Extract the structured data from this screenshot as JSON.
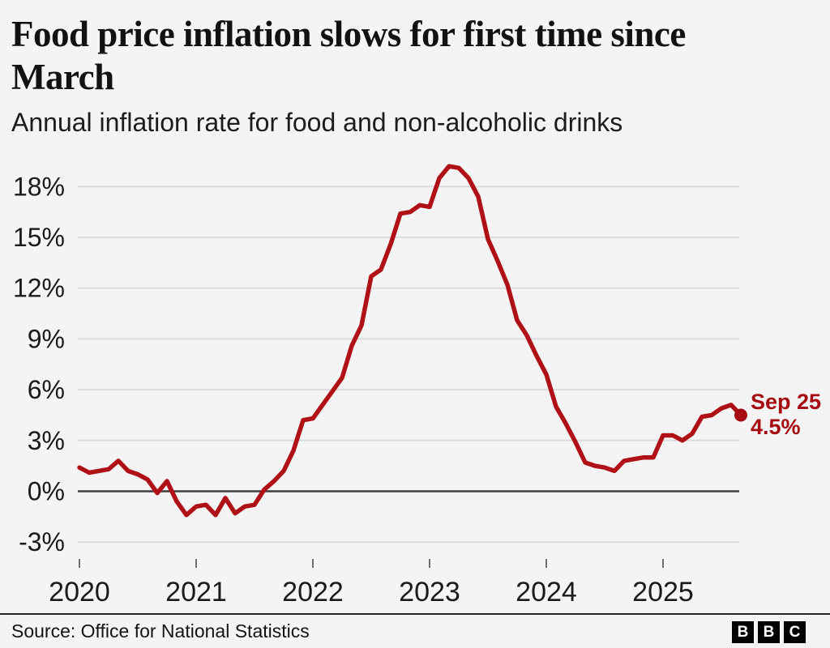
{
  "header": {
    "title": "Food price inflation slows for first time since March",
    "title_lines": [
      "Food price inflation slows for first time since",
      "March"
    ],
    "subtitle": "Annual inflation rate for food and non-alcoholic drinks"
  },
  "footer": {
    "source": "Source: Office for National Statistics",
    "logo_letters": [
      "B",
      "B",
      "C"
    ]
  },
  "colors": {
    "background": "#f4f4f4",
    "accent_red": "#b01116",
    "annotation_red": "#a60d12",
    "grid": "#dcdcdc",
    "zero_line": "#3d3d3d",
    "tick": "#6f6f6f",
    "text": "#1a1a1a"
  },
  "chart_data": {
    "type": "line",
    "title": "Food price inflation slows for first time since March",
    "subtitle": "Annual inflation rate for food and non-alcoholic drinks",
    "unit": "%",
    "x_start": "2020-01",
    "x_frequency": "monthly",
    "series": [
      {
        "name": "Annual inflation rate for food and non-alcoholic drinks",
        "values": [
          1.4,
          1.1,
          1.2,
          1.3,
          1.8,
          1.2,
          1.0,
          0.7,
          -0.1,
          0.6,
          -0.6,
          -1.4,
          -0.9,
          -0.8,
          -1.4,
          -0.4,
          -1.3,
          -0.9,
          -0.8,
          0.1,
          0.6,
          1.2,
          2.4,
          4.2,
          4.3,
          5.1,
          5.9,
          6.7,
          8.6,
          9.8,
          12.7,
          13.1,
          14.6,
          16.4,
          16.5,
          16.9,
          16.8,
          18.5,
          19.2,
          19.1,
          18.5,
          17.4,
          14.9,
          13.6,
          12.2,
          10.1,
          9.2,
          8.0,
          6.9,
          5.0,
          4.0,
          2.9,
          1.7,
          1.5,
          1.4,
          1.2,
          1.8,
          1.9,
          2.0,
          2.0,
          3.3,
          3.3,
          3.0,
          3.4,
          4.4,
          4.5,
          4.9,
          5.1,
          4.5
        ]
      }
    ],
    "x_tick_labels": [
      "2020",
      "2021",
      "2022",
      "2023",
      "2024",
      "2025"
    ],
    "x_tick_month_index": [
      0,
      12,
      24,
      36,
      48,
      60
    ],
    "y_ticks": [
      18,
      15,
      12,
      9,
      6,
      3,
      0,
      -3
    ],
    "y_tick_labels": [
      "18%",
      "15%",
      "12%",
      "9%",
      "6%",
      "3%",
      "0%",
      "-3%"
    ],
    "ylim": [
      -4.5,
      19.6
    ],
    "grid": true,
    "legend": "none",
    "annotation": {
      "label": "Sep 25",
      "value_label": "4.5%",
      "x": "2025-09",
      "value": 4.5
    }
  }
}
